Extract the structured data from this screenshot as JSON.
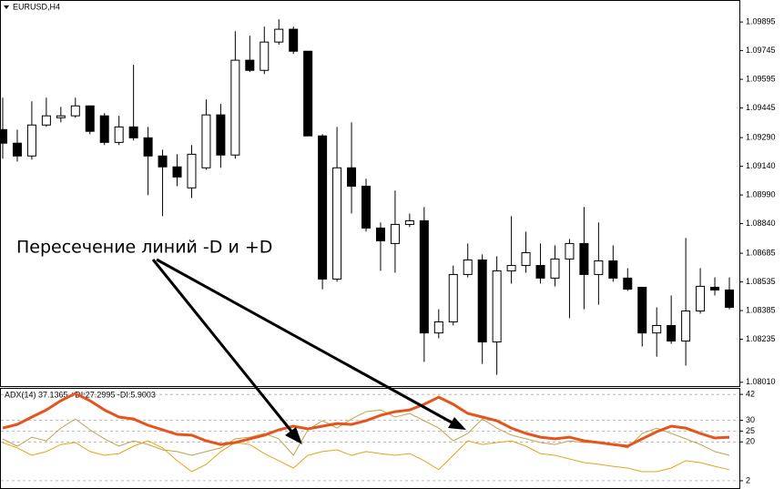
{
  "chart_data": [
    {
      "type": "candlestick",
      "title": "EURUSD,H4",
      "annotation": "Пересечение линий -D и +D",
      "up_color": "#ffffff",
      "down_color": "#000000",
      "open": [
        1.09332,
        1.09261,
        1.09194,
        1.09356,
        1.09394,
        1.09404,
        1.09456,
        1.09404,
        1.09265,
        1.09346,
        1.09289,
        1.09194,
        1.09137,
        1.09027,
        1.09132,
        1.09409,
        1.09199,
        1.09695,
        1.09642,
        1.0979,
        1.09857,
        1.09742,
        1.09299,
        1.0855,
        1.09132,
        1.09036,
        1.08817,
        1.08736,
        1.08836,
        1.08855,
        1.08268,
        1.08326,
        1.08574,
        1.0865,
        1.08221,
        1.08593,
        1.08621,
        1.08621,
        1.08555,
        1.08655,
        1.08736,
        1.08574,
        1.08645,
        1.08555,
        1.08507,
        1.08268,
        1.08307,
        1.08226,
        1.08383,
        1.08507,
        1.08493
      ],
      "high": [
        1.09499,
        1.09332,
        1.0948,
        1.09499,
        1.09451,
        1.09499,
        1.09456,
        1.09418,
        1.09404,
        1.09671,
        1.09346,
        1.09227,
        1.09203,
        1.09251,
        1.0949,
        1.09466,
        1.09847,
        1.09823,
        1.09871,
        1.09909,
        1.09871,
        1.09742,
        1.09308,
        1.09346,
        1.0937,
        1.09075,
        1.08846,
        1.09013,
        1.08893,
        1.08927,
        1.08392,
        1.08621,
        1.08736,
        1.08679,
        1.08669,
        1.08879,
        1.08798,
        1.08736,
        1.08726,
        1.0876,
        1.08927,
        1.08846,
        1.08726,
        1.08607,
        1.08507,
        1.08402,
        1.08464,
        1.08765,
        1.08607,
        1.08559,
        1.08559
      ],
      "low": [
        1.0918,
        1.09165,
        1.09175,
        1.09346,
        1.0937,
        1.09394,
        1.09308,
        1.09251,
        1.09251,
        1.09275,
        1.08989,
        1.08879,
        1.09036,
        1.08974,
        1.09122,
        1.09132,
        1.0918,
        1.09633,
        1.09623,
        1.09776,
        1.09728,
        1.09299,
        1.08497,
        1.08536,
        1.08893,
        1.08798,
        1.08593,
        1.08583,
        1.08822,
        1.08116,
        1.0824,
        1.08307,
        1.08559,
        1.08106,
        1.08049,
        1.08526,
        1.08583,
        1.08526,
        1.08512,
        1.08345,
        1.08392,
        1.08416,
        1.08536,
        1.08488,
        1.08197,
        1.08144,
        1.08211,
        1.08097,
        1.08369,
        1.08464,
        1.08392
      ],
      "close": [
        1.09261,
        1.09194,
        1.09356,
        1.09404,
        1.09404,
        1.09456,
        1.09323,
        1.09265,
        1.09346,
        1.09289,
        1.09194,
        1.09137,
        1.09084,
        1.09203,
        1.09409,
        1.09199,
        1.09695,
        1.09642,
        1.0979,
        1.09857,
        1.09742,
        1.09299,
        1.0855,
        1.09132,
        1.09036,
        1.08817,
        1.0875,
        1.08836,
        1.08855,
        1.08268,
        1.08326,
        1.08574,
        1.0865,
        1.08221,
        1.08593,
        1.08621,
        1.08688,
        1.08555,
        1.08655,
        1.08736,
        1.08574,
        1.08645,
        1.08555,
        1.08497,
        1.08268,
        1.08307,
        1.08226,
        1.08383,
        1.08512,
        1.08493,
        1.08402
      ],
      "ylim": [
        1.0799,
        1.1001
      ],
      "yticks": [
        1.09895,
        1.09745,
        1.09595,
        1.09445,
        {
          "value": 1.0929,
          "label": "1.09290"
        },
        {
          "value": 1.0914,
          "label": "1.09140"
        },
        {
          "value": 1.0899,
          "label": "1.08990"
        },
        {
          "value": 1.0884,
          "label": "1.08840"
        },
        1.08685,
        1.08535,
        1.08385,
        1.08235,
        {
          "value": 1.0801,
          "label": "1.08010"
        }
      ]
    },
    {
      "type": "line",
      "title": "ADX(14) 37.1365 +DI:27.2995 -DI:5.9003",
      "series": [
        {
          "color": "#e4541c",
          "values": [
            26.4,
            28.1,
            31.5,
            34.8,
            39.1,
            42.4,
            39.1,
            34.8,
            31.5,
            30.6,
            27.7,
            25.6,
            23.5,
            23.1,
            20.5,
            18.8,
            19.7,
            21.4,
            23.1,
            25.6,
            27.3,
            26.0,
            27.3,
            28.5,
            28.1,
            29.8,
            32.3,
            34.0,
            34.8,
            37.4,
            40.7,
            37.4,
            33.2,
            31.5,
            29.8,
            26.4,
            23.9,
            22.2,
            21.4,
            22.2,
            20.5,
            19.7,
            18.8,
            18.0,
            21.4,
            24.7,
            27.3,
            26.4,
            23.9,
            21.8,
            22.2
          ]
        },
        {
          "color": "#c2a24a",
          "values": [
            21.4,
            18.0,
            22.2,
            20.5,
            26.4,
            30.6,
            25.6,
            21.4,
            18.0,
            20.5,
            18.8,
            16.3,
            15.5,
            13.8,
            15.5,
            17.2,
            21.4,
            22.2,
            23.9,
            21.4,
            13.8,
            25.6,
            29.8,
            26.4,
            30.6,
            34.0,
            34.8,
            31.5,
            33.2,
            29.8,
            26.4,
            20.5,
            23.9,
            30.6,
            26.4,
            23.1,
            21.4,
            19.7,
            18.8,
            20.5,
            19.7,
            19.7,
            18.8,
            17.2,
            23.9,
            26.4,
            23.9,
            21.4,
            18.8,
            15.5,
            13.8
          ]
        },
        {
          "color": "#e8a317",
          "values": [
            19.7,
            17.2,
            13.8,
            15.5,
            18.8,
            19.7,
            15.5,
            13.8,
            14.6,
            18.0,
            20.5,
            17.2,
            11.3,
            6.2,
            9.6,
            15.5,
            19.7,
            18.8,
            14.6,
            11.3,
            7.9,
            13.8,
            15.5,
            16.3,
            13.8,
            15.5,
            14.6,
            13.8,
            14.6,
            11.3,
            7.1,
            13.8,
            20.5,
            18.8,
            19.7,
            20.5,
            18.0,
            14.6,
            13.8,
            12.1,
            10.4,
            9.6,
            8.7,
            7.9,
            6.2,
            6.2,
            7.9,
            11.3,
            10.4,
            8.7,
            7.1
          ]
        }
      ],
      "ylim": [
        -1.4,
        45
      ],
      "yticks": [
        42,
        30,
        25,
        20,
        2
      ],
      "grid": true
    }
  ]
}
